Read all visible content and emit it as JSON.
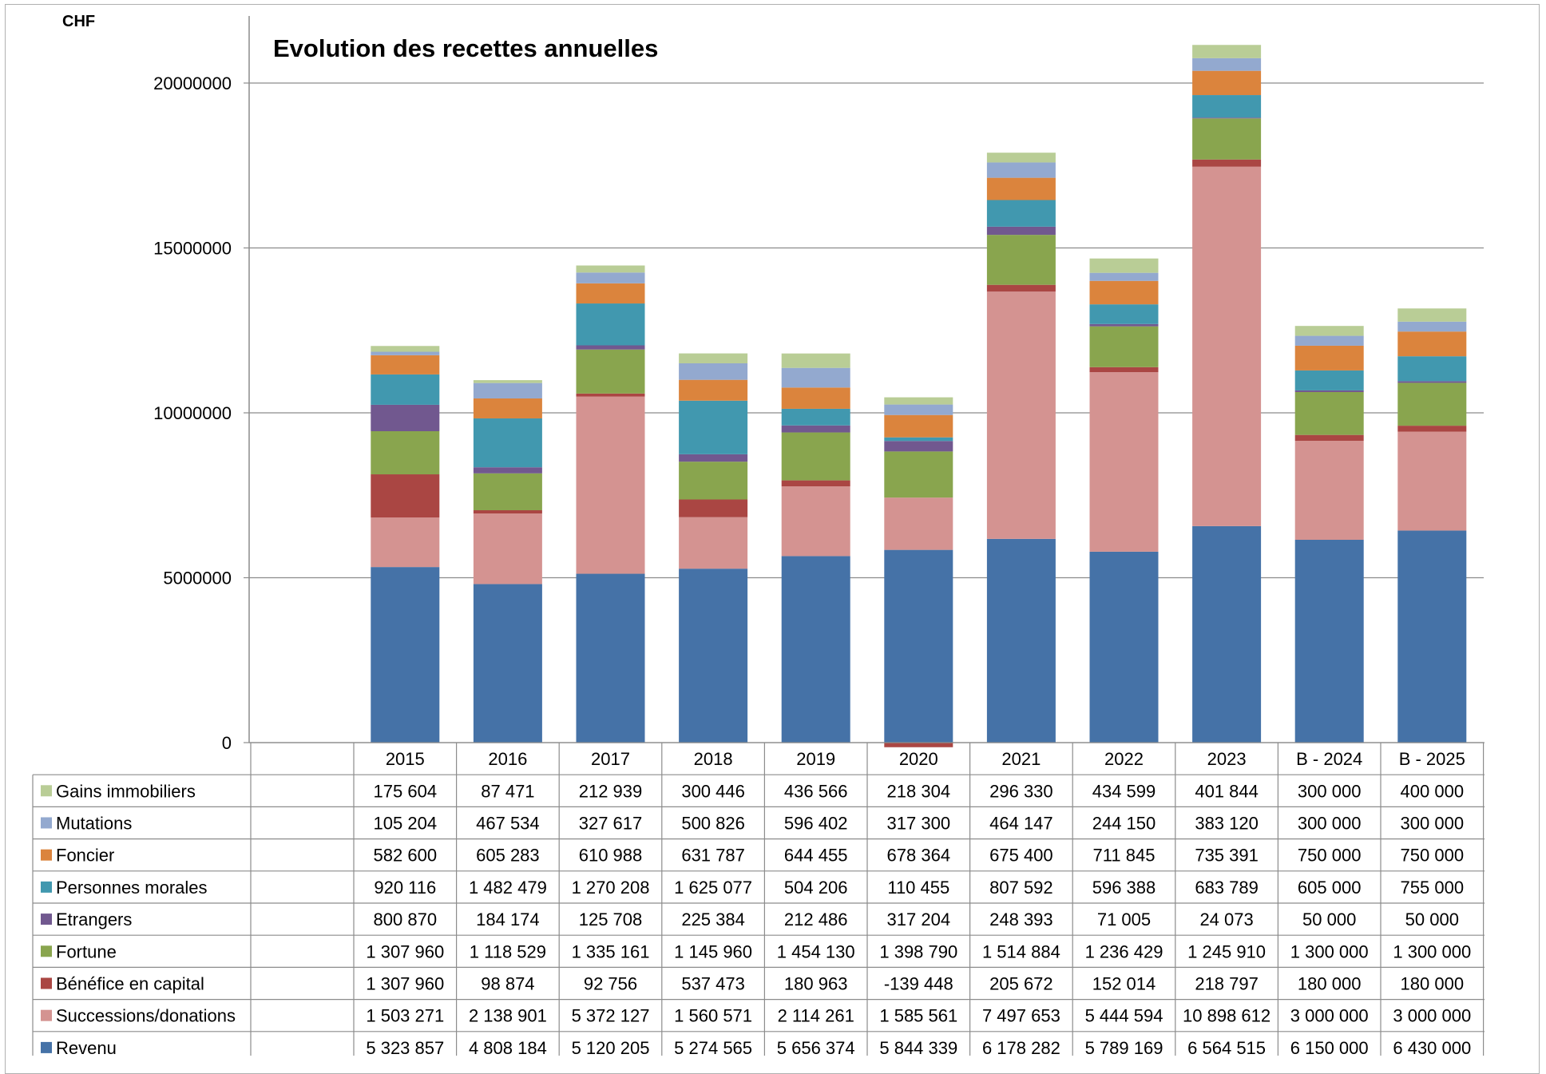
{
  "chart_data": {
    "type": "bar",
    "stacked": true,
    "title": "Evolution des recettes annuelles",
    "ylabel": "CHF",
    "xlabel": "",
    "ylim": [
      0,
      22000000
    ],
    "yticks": [
      "0",
      "5000000",
      "10000000",
      "15000000",
      "20000000"
    ],
    "ytick_values": [
      0,
      5000000,
      10000000,
      15000000,
      20000000
    ],
    "grid": true,
    "legend": "data-table-left",
    "categories": [
      "2015",
      "2016",
      "2017",
      "2018",
      "2019",
      "2020",
      "2021",
      "2022",
      "2023",
      "B - 2024",
      "B - 2025"
    ],
    "series": [
      {
        "name": "Revenu",
        "color": "#4572A7",
        "values": [
          5323857,
          4808184,
          5120205,
          5274565,
          5656374,
          5844339,
          6178282,
          5789169,
          6564515,
          6150000,
          6430000
        ],
        "labels": [
          "5 323 857",
          "4 808 184",
          "5 120 205",
          "5 274 565",
          "5 656 374",
          "5 844 339",
          "6 178 282",
          "5 789 169",
          "6 564 515",
          "6 150 000",
          "6 430 000"
        ]
      },
      {
        "name": "Successions/donations",
        "color": "#D49391",
        "values": [
          1503271,
          2138901,
          5372127,
          1560571,
          2114261,
          1585561,
          7497653,
          5444594,
          10898612,
          3000000,
          3000000
        ],
        "labels": [
          "1 503 271",
          "2 138 901",
          "5 372 127",
          "1 560 571",
          "2 114 261",
          "1 585 561",
          "7 497 653",
          "5 444 594",
          "10 898 612",
          "3 000 000",
          "3 000 000"
        ]
      },
      {
        "name": "Bénéfice en capital",
        "color": "#AA4643",
        "values": [
          1307960,
          98874,
          92756,
          537473,
          180963,
          -139448,
          205672,
          152014,
          218797,
          180000,
          180000
        ],
        "labels": [
          "1 307 960",
          "98 874",
          "92 756",
          "537 473",
          "180 963",
          "-139 448",
          "205 672",
          "152 014",
          "218 797",
          "180 000",
          "180 000"
        ]
      },
      {
        "name": "Fortune",
        "color": "#89A54E",
        "values": [
          1307960,
          1118529,
          1335161,
          1145960,
          1454130,
          1398790,
          1514884,
          1236429,
          1245910,
          1300000,
          1300000
        ],
        "labels": [
          "1 307 960",
          "1 118 529",
          "1 335 161",
          "1 145 960",
          "1 454 130",
          "1 398 790",
          "1 514 884",
          "1 236 429",
          "1 245 910",
          "1 300 000",
          "1 300 000"
        ]
      },
      {
        "name": "Etrangers",
        "color": "#71588F",
        "values": [
          800870,
          184174,
          125708,
          225384,
          212486,
          317204,
          248393,
          71005,
          24073,
          50000,
          50000
        ],
        "labels": [
          "800 870",
          "184 174",
          "125 708",
          "225 384",
          "212 486",
          "317 204",
          "248 393",
          "71 005",
          "24 073",
          "50 000",
          "50 000"
        ]
      },
      {
        "name": "Personnes morales",
        "color": "#4198AF",
        "values": [
          920116,
          1482479,
          1270208,
          1625077,
          504206,
          110455,
          807592,
          596388,
          683789,
          605000,
          755000
        ],
        "labels": [
          "920 116",
          "1 482 479",
          "1 270 208",
          "1 625 077",
          "504 206",
          "110 455",
          "807 592",
          "596 388",
          "683 789",
          "605 000",
          "755 000"
        ]
      },
      {
        "name": "Foncier",
        "color": "#DB843D",
        "values": [
          582600,
          605283,
          610988,
          631787,
          644455,
          678364,
          675400,
          711845,
          735391,
          750000,
          750000
        ],
        "labels": [
          "582 600",
          "605 283",
          "610 988",
          "631 787",
          "644 455",
          "678 364",
          "675 400",
          "711 845",
          "735 391",
          "750 000",
          "750 000"
        ]
      },
      {
        "name": "Mutations",
        "color": "#93A9CF",
        "values": [
          105204,
          467534,
          327617,
          500826,
          596402,
          317300,
          464147,
          244150,
          383120,
          300000,
          300000
        ],
        "labels": [
          "105 204",
          "467 534",
          "327 617",
          "500 826",
          "596 402",
          "317 300",
          "464 147",
          "244 150",
          "383 120",
          "300 000",
          "300 000"
        ]
      },
      {
        "name": "Gains immobiliers",
        "color": "#B9CD96",
        "values": [
          175604,
          87471,
          212939,
          300446,
          436566,
          218304,
          296330,
          434599,
          401844,
          300000,
          400000
        ],
        "labels": [
          "175 604",
          "87 471",
          "212 939",
          "300 446",
          "436 566",
          "218 304",
          "296 330",
          "434 599",
          "401 844",
          "300 000",
          "400 000"
        ]
      }
    ],
    "table_row_order": [
      "Gains immobiliers",
      "Mutations",
      "Foncier",
      "Personnes morales",
      "Etrangers",
      "Fortune",
      "Bénéfice en capital",
      "Successions/donations",
      "Revenu"
    ]
  }
}
